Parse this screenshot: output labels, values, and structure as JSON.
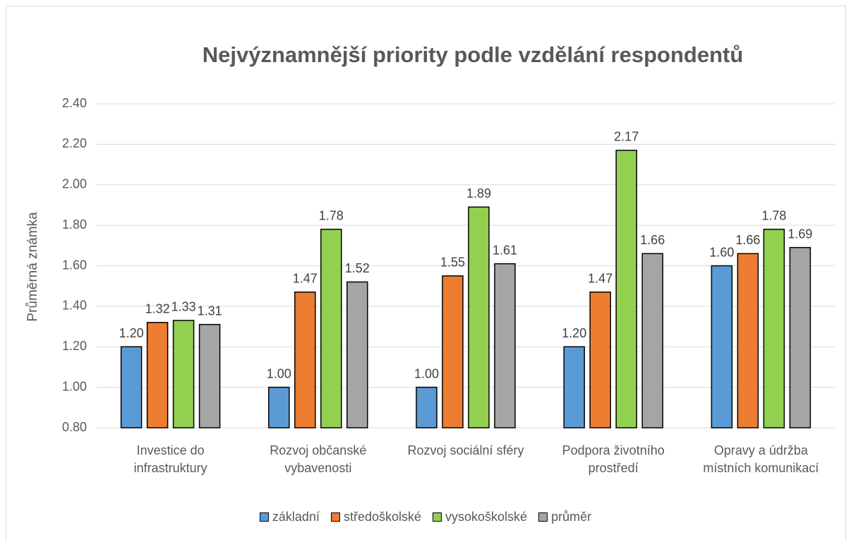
{
  "chart_data": {
    "type": "bar",
    "title": "Nejvýznamnější priority podle vzdělání respondentů",
    "y_label": "Průměrná známka",
    "categories": [
      "Investice do infrastruktury",
      "Rozvoj občanské vybavenosti",
      "Rozvoj sociální sféry",
      "Podpora životního prostředí",
      "Opravy a údržba místních komunikací"
    ],
    "series": [
      {
        "name": "základní",
        "color": "#5b9bd5",
        "values": [
          1.2,
          1.0,
          1.0,
          1.2,
          1.6
        ],
        "value_labels": [
          "1.20",
          "1.00",
          "1.00",
          "1.20",
          "1.60"
        ]
      },
      {
        "name": "středoškolské",
        "color": "#ed7d31",
        "values": [
          1.32,
          1.47,
          1.55,
          1.47,
          1.66
        ],
        "value_labels": [
          "1.32",
          "1.47",
          "1.55",
          "1.47",
          "1.66"
        ]
      },
      {
        "name": "vysokoškolské",
        "color": "#92d050",
        "values": [
          1.33,
          1.78,
          1.89,
          2.17,
          1.78
        ],
        "value_labels": [
          "1.33",
          "1.78",
          "1.89",
          "2.17",
          "1.78"
        ]
      },
      {
        "name": "průměr",
        "color": "#a5a5a5",
        "values": [
          1.31,
          1.52,
          1.61,
          1.66,
          1.69
        ],
        "value_labels": [
          "1.31",
          "1.52",
          "1.61",
          "1.66",
          "1.69"
        ]
      }
    ],
    "ylim": [
      0.8,
      2.4
    ],
    "yticks": [
      {
        "value": 0.8,
        "label": "0.80"
      },
      {
        "value": 1.0,
        "label": "1.00"
      },
      {
        "value": 1.2,
        "label": "1.20"
      },
      {
        "value": 1.4,
        "label": "1.40"
      },
      {
        "value": 1.6,
        "label": "1.60"
      },
      {
        "value": 1.8,
        "label": "1.80"
      },
      {
        "value": 2.0,
        "label": "2.00"
      },
      {
        "value": 2.2,
        "label": "2.20"
      },
      {
        "value": 2.4,
        "label": "2.40"
      }
    ],
    "grid": true,
    "legend": "bottom"
  }
}
